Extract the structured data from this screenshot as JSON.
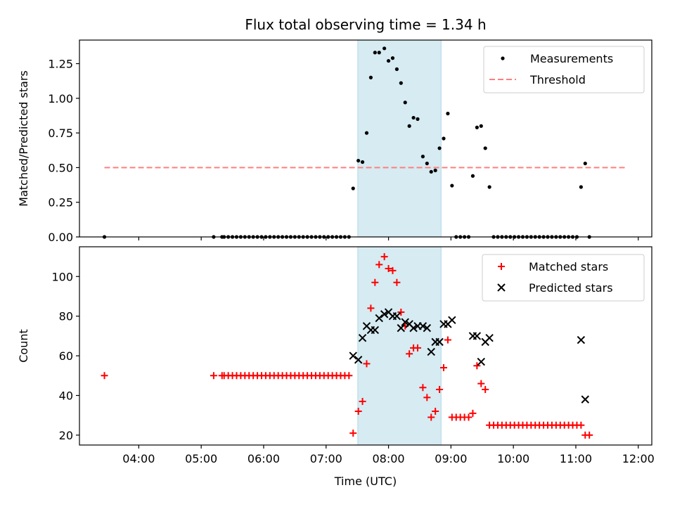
{
  "chart_data": {
    "title": "Flux total observing time = 1.34 h",
    "xlabel": "Time (UTC)",
    "x_units": "minutes after 00:00 UTC",
    "xlim": [
      183,
      733
    ],
    "xticks": [
      240,
      300,
      360,
      420,
      480,
      540,
      600,
      660,
      720
    ],
    "xtick_labels": [
      "04:00",
      "05:00",
      "06:00",
      "07:00",
      "08:00",
      "09:00",
      "10:00",
      "11:00",
      "12:00"
    ],
    "highlight_span": [
      450.5,
      530.5
    ],
    "highlight_color": "#add8e6",
    "panels": [
      {
        "type": "scatter",
        "ylabel": "Matched/Predicted stars",
        "ylim": [
          0,
          1.42
        ],
        "yticks": [
          0,
          0.25,
          0.5,
          0.75,
          1.0,
          1.25
        ],
        "ytick_labels": [
          "0.00",
          "0.25",
          "0.50",
          "0.75",
          "1.00",
          "1.25"
        ],
        "legend_position": "upper right",
        "series": [
          {
            "name": "Measurements",
            "marker": "dot",
            "color": "#000000",
            "points": [
              [
                207,
                0
              ],
              [
                312,
                0
              ],
              [
                320,
                0
              ],
              [
                322,
                0
              ],
              [
                326,
                0
              ],
              [
                330,
                0
              ],
              [
                334,
                0
              ],
              [
                338,
                0
              ],
              [
                342,
                0
              ],
              [
                346,
                0
              ],
              [
                350,
                0
              ],
              [
                354,
                0
              ],
              [
                358,
                0
              ],
              [
                362,
                0
              ],
              [
                366,
                0
              ],
              [
                370,
                0
              ],
              [
                374,
                0
              ],
              [
                378,
                0
              ],
              [
                382,
                0
              ],
              [
                386,
                0
              ],
              [
                390,
                0
              ],
              [
                394,
                0
              ],
              [
                398,
                0
              ],
              [
                402,
                0
              ],
              [
                406,
                0
              ],
              [
                410,
                0
              ],
              [
                414,
                0
              ],
              [
                418,
                0
              ],
              [
                422,
                0
              ],
              [
                426,
                0
              ],
              [
                430,
                0
              ],
              [
                434,
                0
              ],
              [
                438,
                0
              ],
              [
                442,
                0
              ],
              [
                446,
                0.35
              ],
              [
                451,
                0.55
              ],
              [
                455,
                0.54
              ],
              [
                459,
                0.75
              ],
              [
                463,
                1.15
              ],
              [
                467,
                1.33
              ],
              [
                471,
                1.33
              ],
              [
                476,
                1.36
              ],
              [
                480,
                1.27
              ],
              [
                484,
                1.29
              ],
              [
                488,
                1.21
              ],
              [
                492,
                1.11
              ],
              [
                496,
                0.97
              ],
              [
                500,
                0.8
              ],
              [
                504,
                0.86
              ],
              [
                508,
                0.85
              ],
              [
                513,
                0.58
              ],
              [
                517,
                0.53
              ],
              [
                521,
                0.47
              ],
              [
                525,
                0.48
              ],
              [
                529,
                0.64
              ],
              [
                533,
                0.71
              ],
              [
                537,
                0.89
              ],
              [
                541,
                0.37
              ],
              [
                545,
                0
              ],
              [
                549,
                0
              ],
              [
                553,
                0
              ],
              [
                557,
                0
              ],
              [
                561,
                0.44
              ],
              [
                565,
                0.79
              ],
              [
                569,
                0.8
              ],
              [
                573,
                0.64
              ],
              [
                577,
                0.36
              ],
              [
                581,
                0
              ],
              [
                585,
                0
              ],
              [
                589,
                0
              ],
              [
                593,
                0
              ],
              [
                597,
                0
              ],
              [
                601,
                0
              ],
              [
                605,
                0
              ],
              [
                609,
                0
              ],
              [
                613,
                0
              ],
              [
                617,
                0
              ],
              [
                621,
                0
              ],
              [
                625,
                0
              ],
              [
                629,
                0
              ],
              [
                633,
                0
              ],
              [
                637,
                0
              ],
              [
                641,
                0
              ],
              [
                645,
                0
              ],
              [
                649,
                0
              ],
              [
                653,
                0
              ],
              [
                657,
                0
              ],
              [
                661,
                0
              ],
              [
                665,
                0.36
              ],
              [
                669,
                0.53
              ],
              [
                673,
                0
              ]
            ]
          },
          {
            "name": "Threshold",
            "type": "line",
            "style": "dashed",
            "color": "#ff7f7f",
            "points": [
              [
                207,
                0.5
              ],
              [
                707,
                0.5
              ]
            ]
          }
        ]
      },
      {
        "type": "scatter",
        "ylabel": "Count",
        "ylim": [
          15,
          115
        ],
        "yticks": [
          20,
          40,
          60,
          80,
          100
        ],
        "ytick_labels": [
          "20",
          "40",
          "60",
          "80",
          "100"
        ],
        "legend_position": "upper right",
        "series": [
          {
            "name": "Matched stars",
            "marker": "plus",
            "color": "#ff0000",
            "points": [
              [
                207,
                50
              ],
              [
                312,
                50
              ],
              [
                320,
                50
              ],
              [
                322,
                50
              ],
              [
                326,
                50
              ],
              [
                330,
                50
              ],
              [
                334,
                50
              ],
              [
                338,
                50
              ],
              [
                342,
                50
              ],
              [
                346,
                50
              ],
              [
                350,
                50
              ],
              [
                354,
                50
              ],
              [
                358,
                50
              ],
              [
                362,
                50
              ],
              [
                366,
                50
              ],
              [
                370,
                50
              ],
              [
                374,
                50
              ],
              [
                378,
                50
              ],
              [
                382,
                50
              ],
              [
                386,
                50
              ],
              [
                390,
                50
              ],
              [
                394,
                50
              ],
              [
                398,
                50
              ],
              [
                402,
                50
              ],
              [
                406,
                50
              ],
              [
                410,
                50
              ],
              [
                414,
                50
              ],
              [
                418,
                50
              ],
              [
                422,
                50
              ],
              [
                426,
                50
              ],
              [
                430,
                50
              ],
              [
                434,
                50
              ],
              [
                438,
                50
              ],
              [
                442,
                50
              ],
              [
                446,
                21
              ],
              [
                451,
                32
              ],
              [
                455,
                37
              ],
              [
                459,
                56
              ],
              [
                463,
                84
              ],
              [
                467,
                97
              ],
              [
                471,
                106
              ],
              [
                476,
                110
              ],
              [
                480,
                104
              ],
              [
                484,
                103
              ],
              [
                488,
                97
              ],
              [
                492,
                82
              ],
              [
                496,
                75
              ],
              [
                500,
                61
              ],
              [
                504,
                64
              ],
              [
                508,
                64
              ],
              [
                513,
                44
              ],
              [
                517,
                39
              ],
              [
                521,
                29
              ],
              [
                525,
                32
              ],
              [
                529,
                43
              ],
              [
                533,
                54
              ],
              [
                537,
                68
              ],
              [
                541,
                29
              ],
              [
                545,
                29
              ],
              [
                549,
                29
              ],
              [
                553,
                29
              ],
              [
                557,
                29
              ],
              [
                561,
                31
              ],
              [
                565,
                55
              ],
              [
                569,
                46
              ],
              [
                573,
                43
              ],
              [
                577,
                25
              ],
              [
                581,
                25
              ],
              [
                585,
                25
              ],
              [
                589,
                25
              ],
              [
                593,
                25
              ],
              [
                597,
                25
              ],
              [
                601,
                25
              ],
              [
                605,
                25
              ],
              [
                609,
                25
              ],
              [
                613,
                25
              ],
              [
                617,
                25
              ],
              [
                621,
                25
              ],
              [
                625,
                25
              ],
              [
                629,
                25
              ],
              [
                633,
                25
              ],
              [
                637,
                25
              ],
              [
                641,
                25
              ],
              [
                645,
                25
              ],
              [
                649,
                25
              ],
              [
                653,
                25
              ],
              [
                657,
                25
              ],
              [
                661,
                25
              ],
              [
                665,
                25
              ],
              [
                669,
                20
              ],
              [
                673,
                20
              ]
            ]
          },
          {
            "name": "Predicted stars",
            "marker": "x",
            "color": "#000000",
            "points": [
              [
                446,
                60
              ],
              [
                451,
                58
              ],
              [
                455,
                69
              ],
              [
                459,
                75
              ],
              [
                463,
                73
              ],
              [
                467,
                73
              ],
              [
                471,
                79
              ],
              [
                476,
                81
              ],
              [
                480,
                82
              ],
              [
                484,
                80
              ],
              [
                488,
                80
              ],
              [
                492,
                74
              ],
              [
                496,
                77
              ],
              [
                500,
                76
              ],
              [
                504,
                74
              ],
              [
                508,
                75
              ],
              [
                513,
                75
              ],
              [
                517,
                74
              ],
              [
                521,
                62
              ],
              [
                525,
                67
              ],
              [
                529,
                67
              ],
              [
                533,
                76
              ],
              [
                537,
                76
              ],
              [
                541,
                78
              ],
              [
                561,
                70
              ],
              [
                565,
                70
              ],
              [
                569,
                57
              ],
              [
                573,
                67
              ],
              [
                577,
                69
              ],
              [
                665,
                68
              ],
              [
                669,
                38
              ]
            ]
          }
        ]
      }
    ]
  }
}
